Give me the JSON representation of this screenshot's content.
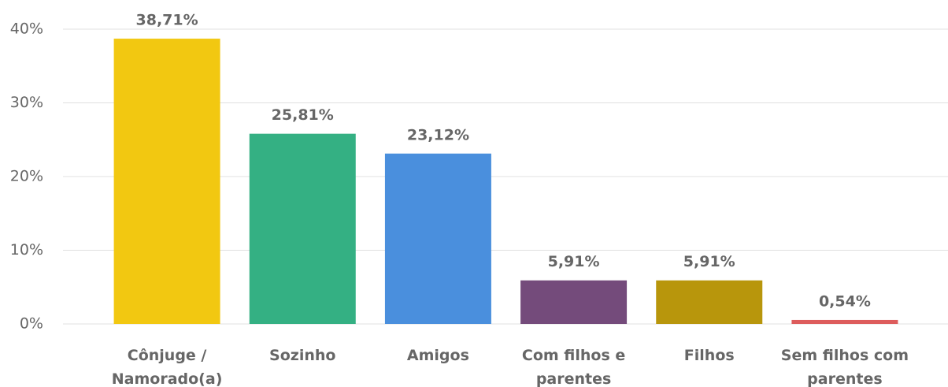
{
  "chart_data": {
    "type": "bar",
    "categories": [
      "Cônjuge / Namorado(a)",
      "Sozinho",
      "Amigos",
      "Com filhos e parentes",
      "Filhos",
      "Sem filhos com parentes"
    ],
    "values": [
      38.71,
      25.81,
      23.12,
      5.91,
      5.91,
      0.54
    ],
    "value_labels": [
      "38,71%",
      "25,81%",
      "23,12%",
      "5,91%",
      "5,91%",
      "0,54%"
    ],
    "colors": [
      "#f2c811",
      "#34b083",
      "#4a8fdd",
      "#744b7b",
      "#b8960c",
      "#dd5c5c"
    ],
    "ylim": [
      0,
      40
    ],
    "yticks": [
      {
        "value": 0,
        "label": "0%"
      },
      {
        "value": 10,
        "label": "10%"
      },
      {
        "value": 20,
        "label": "20%"
      },
      {
        "value": 30,
        "label": "30%"
      },
      {
        "value": 40,
        "label": "40%"
      }
    ],
    "grid": true
  }
}
